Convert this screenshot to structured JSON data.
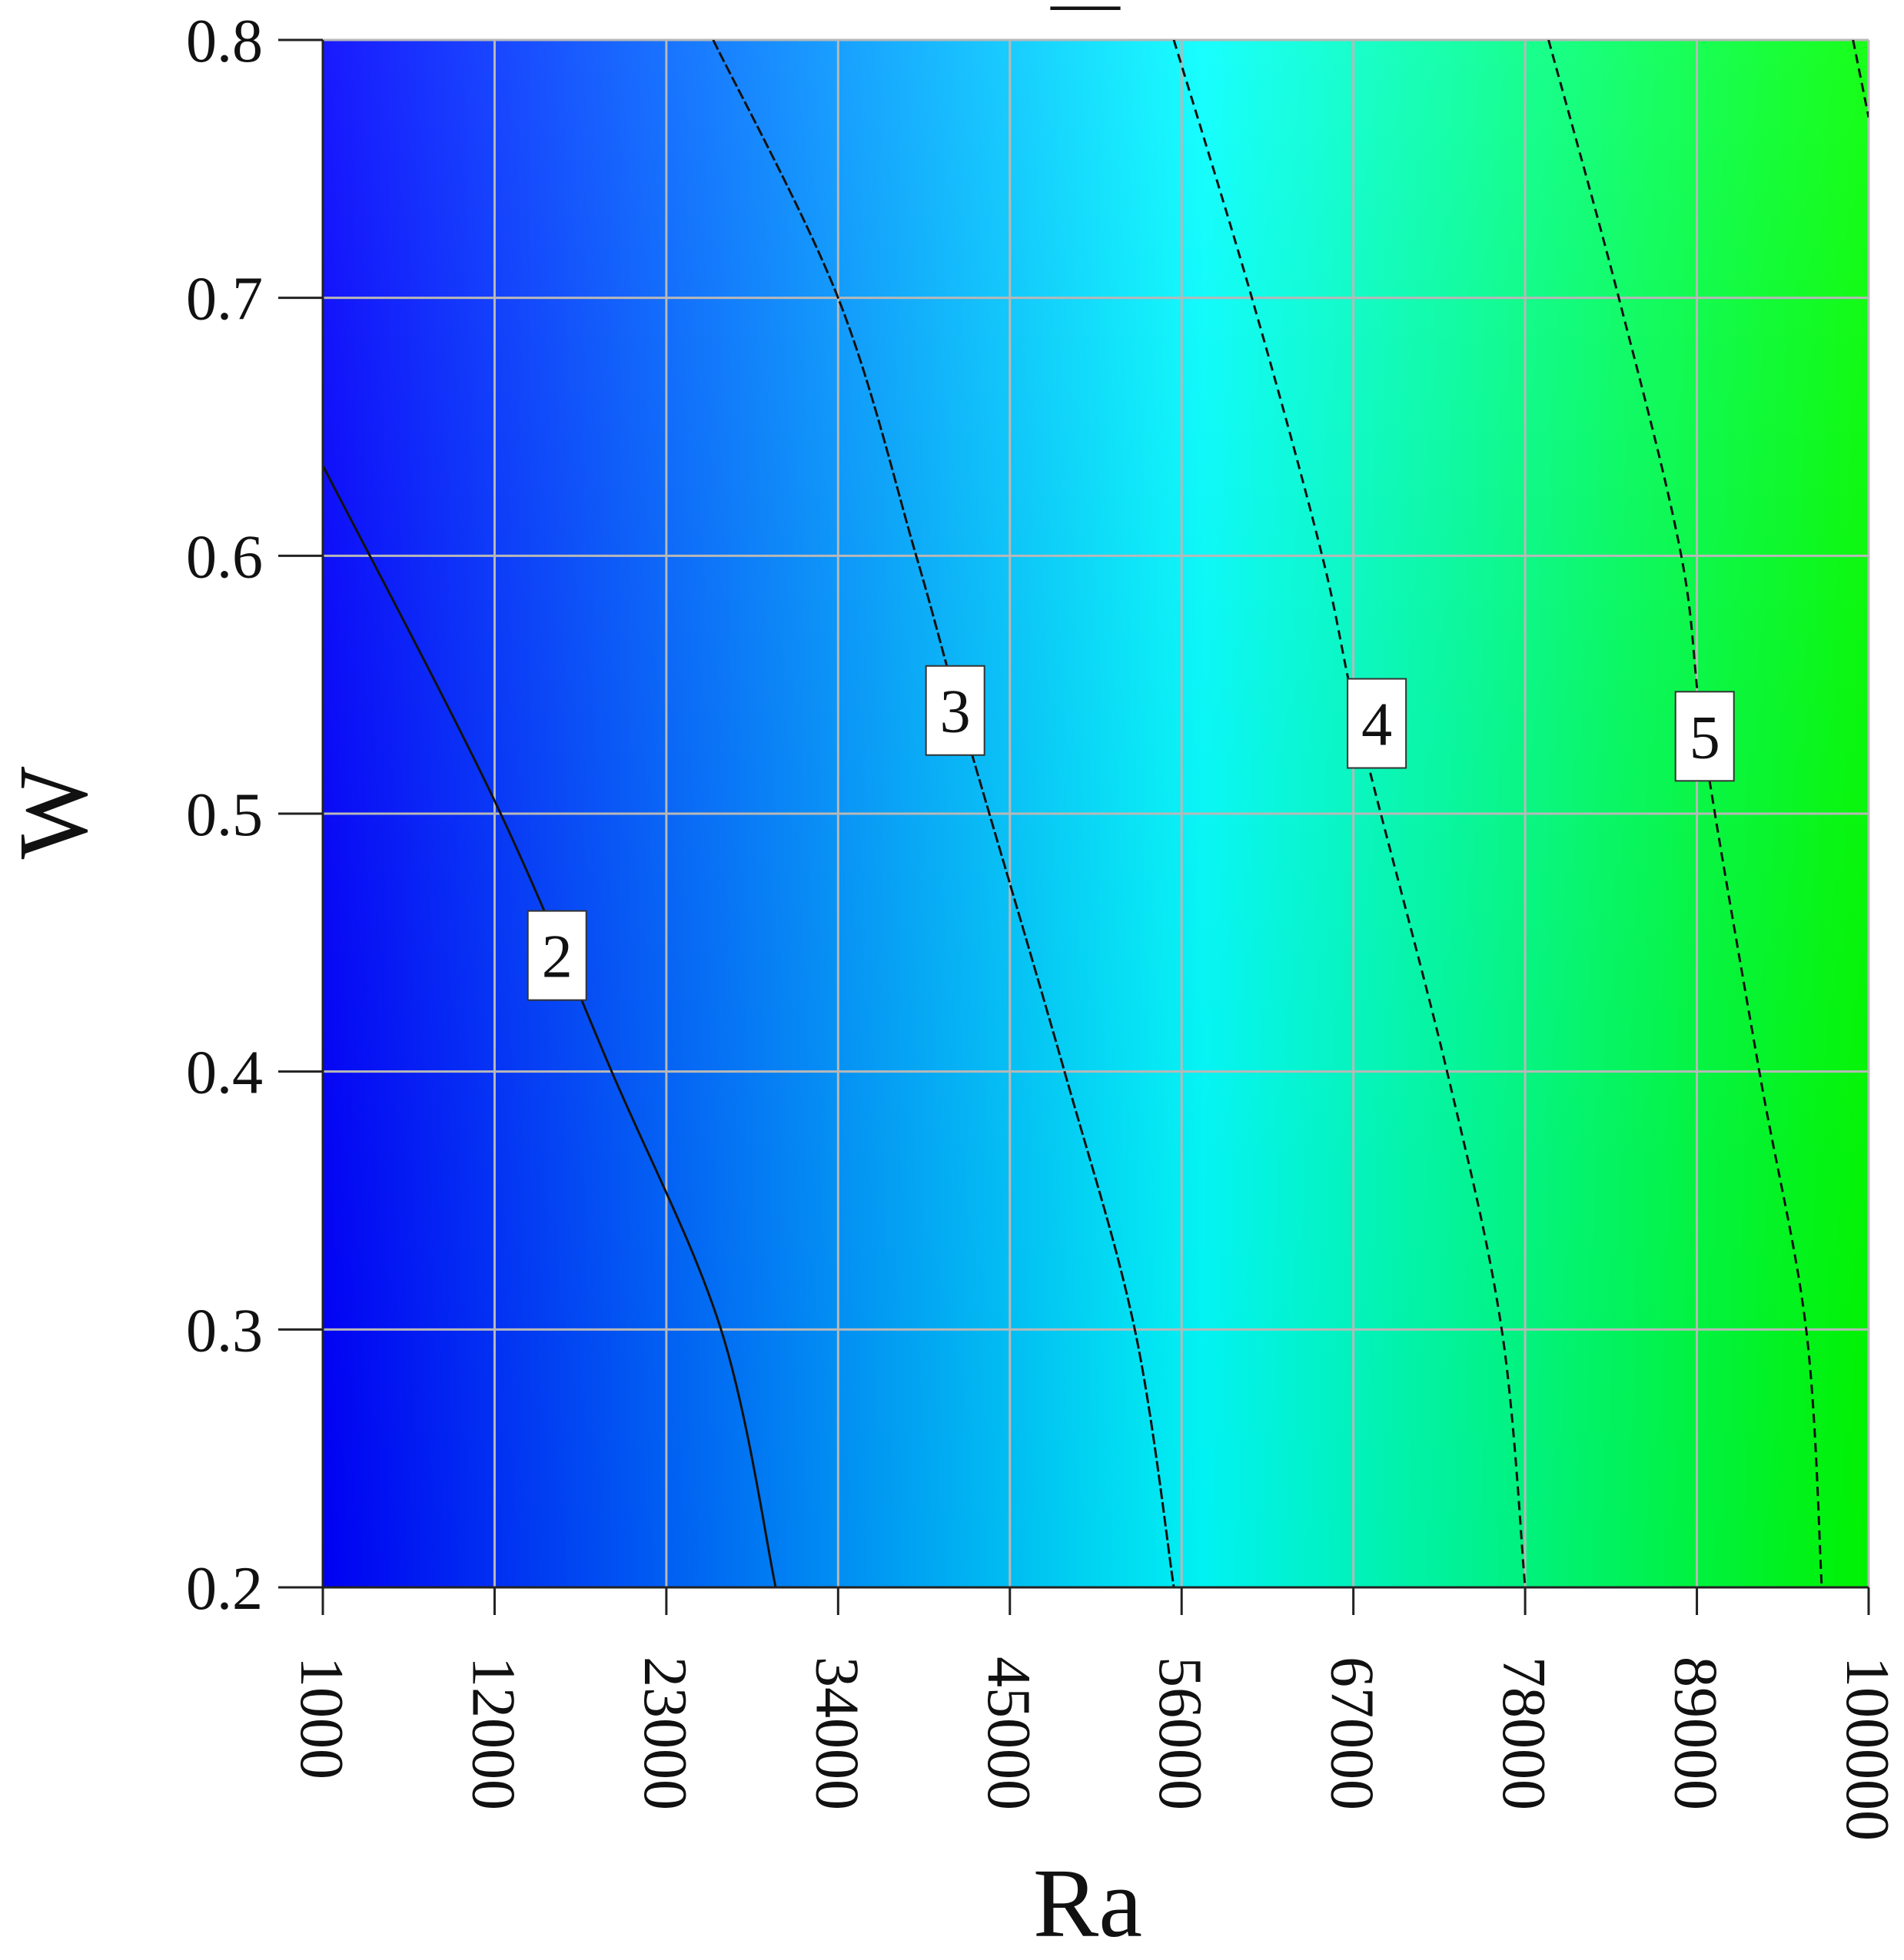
{
  "chart_data": {
    "type": "heatmap",
    "title": "",
    "title_mark": "—",
    "xlabel": "Ra",
    "ylabel": "W",
    "xlim": [
      1000,
      100000
    ],
    "ylim": [
      0.2,
      0.8
    ],
    "x_ticks": [
      "1000",
      "12000",
      "23000",
      "34000",
      "45000",
      "56000",
      "67000",
      "78000",
      "89000",
      "100000"
    ],
    "y_ticks": [
      "0.2",
      "0.3",
      "0.4",
      "0.5",
      "0.6",
      "0.7",
      "0.8"
    ],
    "grid": true,
    "colormap": [
      "#0000ff",
      "#00ffff",
      "#00ff00"
    ],
    "color_range": [
      1.3,
      5.8
    ],
    "contours": [
      {
        "level": "2",
        "points": [
          [
            1000,
            0.635
          ],
          [
            12000,
            0.505
          ],
          [
            19500,
            0.4
          ],
          [
            26500,
            0.3
          ],
          [
            30000,
            0.2
          ]
        ],
        "label_at": [
          16000,
          0.445
        ]
      },
      {
        "level": "3",
        "points": [
          [
            26000,
            0.8
          ],
          [
            34000,
            0.7
          ],
          [
            39000,
            0.6
          ],
          [
            42000,
            0.535
          ],
          [
            48500,
            0.4
          ],
          [
            53000,
            0.3
          ],
          [
            55500,
            0.2
          ]
        ],
        "label_at": [
          41500,
          0.54
        ]
      },
      {
        "level": "4",
        "points": [
          [
            55500,
            0.8
          ],
          [
            60500,
            0.7
          ],
          [
            65000,
            0.6
          ],
          [
            67500,
            0.53
          ],
          [
            73000,
            0.4
          ],
          [
            76500,
            0.3
          ],
          [
            78000,
            0.2
          ]
        ],
        "label_at": [
          68500,
          0.535
        ]
      },
      {
        "level": "5",
        "points": [
          [
            79500,
            0.8
          ],
          [
            84000,
            0.7
          ],
          [
            88000,
            0.6
          ],
          [
            89500,
            0.525
          ],
          [
            93000,
            0.4
          ],
          [
            96000,
            0.3
          ],
          [
            97000,
            0.2
          ]
        ],
        "label_at": [
          89500,
          0.53
        ]
      },
      {
        "level": "",
        "points": [
          [
            99000,
            0.8
          ],
          [
            100000,
            0.77
          ]
        ],
        "label_at": null
      }
    ]
  }
}
